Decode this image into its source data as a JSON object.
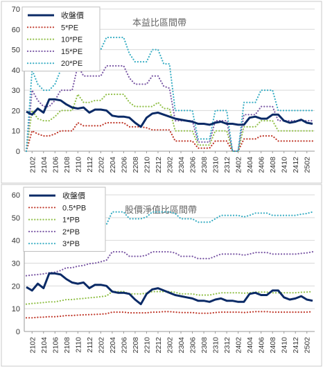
{
  "chart_data": [
    {
      "type": "line",
      "title": "本益比區間帶",
      "ylim": [
        0,
        70
      ],
      "yticks": [
        0,
        10,
        20,
        30,
        40,
        50,
        60,
        70
      ],
      "x": [
        "2101",
        "2102",
        "2103",
        "2104",
        "2105",
        "2106",
        "2107",
        "2108",
        "2109",
        "2110",
        "2111",
        "2112",
        "2201",
        "2202",
        "2203",
        "2204",
        "2205",
        "2206",
        "2207",
        "2208",
        "2209",
        "2210",
        "2211",
        "2212",
        "2301",
        "2302",
        "2303",
        "2304",
        "2305",
        "2306",
        "2307",
        "2308",
        "2309",
        "2310",
        "2311",
        "2312",
        "2401",
        "2402",
        "2403",
        "2404",
        "2405",
        "2406",
        "2407",
        "2408",
        "2409",
        "2410",
        "2411",
        "2412",
        "2501",
        "2502",
        "2503"
      ],
      "xticklabels": [
        "2102",
        "2104",
        "2106",
        "2108",
        "2110",
        "2112",
        "2202",
        "2204",
        "2206",
        "2208",
        "2210",
        "2212",
        "2302",
        "2304",
        "2306",
        "2308",
        "2310",
        "2312",
        "2402",
        "2404",
        "2406",
        "2408",
        "2410",
        "2412",
        "2502"
      ],
      "series": [
        {
          "name": "收盤價",
          "color": "#0a2a66",
          "style": "solid",
          "width": 3,
          "values": [
            19.5,
            18,
            21,
            19,
            25.5,
            25.5,
            25,
            23,
            21.5,
            21,
            21.5,
            19,
            20.5,
            20.5,
            20,
            17.5,
            17,
            17,
            16.5,
            14,
            12,
            16.5,
            18.5,
            19,
            18,
            17,
            16,
            15.5,
            15,
            14.5,
            13.5,
            13.5,
            13,
            14,
            14.5,
            13.5,
            13.5,
            13,
            13,
            16.5,
            17,
            16,
            16,
            18,
            18,
            15,
            14,
            14.5,
            15.5,
            14,
            13.5
          ]
        },
        {
          "name": "5*PE",
          "color": "#c0392b",
          "style": "dotted",
          "width": 2.2,
          "values": [
            0,
            10,
            8.5,
            7.5,
            7.5,
            8.5,
            10,
            10,
            10,
            14,
            12.5,
            12.5,
            12.5,
            12.5,
            14,
            14,
            14,
            14,
            12,
            12,
            12,
            11.5,
            10.5,
            10.5,
            10.5,
            10.5,
            5,
            5,
            5,
            5,
            1.5,
            1.5,
            1.5,
            5,
            5,
            5,
            0,
            0,
            6,
            6,
            6,
            7.5,
            7.5,
            7.5,
            5,
            5,
            5,
            5,
            5,
            5,
            5
          ]
        },
        {
          "name": "10*PE",
          "color": "#92c04a",
          "style": "dotted",
          "width": 2.2,
          "values": [
            0,
            20,
            16,
            15,
            15,
            17,
            20,
            20,
            20,
            28,
            24,
            24,
            25,
            25,
            28,
            28,
            28,
            28,
            24,
            22,
            22,
            22,
            22,
            24,
            21,
            21,
            10,
            10,
            10,
            10,
            3,
            3,
            3,
            10,
            10,
            10,
            0,
            0,
            12,
            12,
            12,
            15,
            15,
            15,
            10,
            10,
            10,
            10,
            10,
            10,
            10
          ]
        },
        {
          "name": "15*PE",
          "color": "#7c5aa6",
          "style": "dotted",
          "width": 2.2,
          "values": [
            0,
            30,
            25,
            22,
            22,
            25,
            30,
            30,
            30,
            42,
            37,
            37,
            37,
            37,
            42,
            42,
            42,
            42,
            36,
            33,
            33,
            33,
            37,
            37,
            32,
            31,
            15,
            15,
            15,
            15,
            4.5,
            4.5,
            4.5,
            15,
            15,
            15,
            0,
            0,
            18,
            18,
            18,
            22,
            22,
            22,
            15,
            15,
            15,
            15,
            15,
            15,
            15
          ]
        },
        {
          "name": "20*PE",
          "color": "#3aaec4",
          "style": "dotted",
          "width": 2.2,
          "values": [
            0,
            40,
            33,
            30,
            30,
            33,
            40,
            40,
            40,
            56,
            50,
            50,
            50,
            50,
            56,
            56,
            56,
            56,
            48,
            44,
            44,
            44,
            50,
            50,
            43,
            43,
            20,
            20,
            20,
            20,
            6,
            6,
            6,
            20,
            20,
            20,
            0,
            0,
            24,
            24,
            24,
            30,
            30,
            30,
            20,
            20,
            20,
            20,
            20,
            20,
            20
          ]
        }
      ]
    },
    {
      "type": "line",
      "title": "股價淨值比區間帶",
      "ylim": [
        0,
        60
      ],
      "yticks": [
        0,
        10,
        20,
        30,
        40,
        50,
        60
      ],
      "x": [
        "2101",
        "2102",
        "2103",
        "2104",
        "2105",
        "2106",
        "2107",
        "2108",
        "2109",
        "2110",
        "2111",
        "2112",
        "2201",
        "2202",
        "2203",
        "2204",
        "2205",
        "2206",
        "2207",
        "2208",
        "2209",
        "2210",
        "2211",
        "2212",
        "2301",
        "2302",
        "2303",
        "2304",
        "2305",
        "2306",
        "2307",
        "2308",
        "2309",
        "2310",
        "2311",
        "2312",
        "2401",
        "2402",
        "2403",
        "2404",
        "2405",
        "2406",
        "2407",
        "2408",
        "2409",
        "2410",
        "2411",
        "2412",
        "2501",
        "2502",
        "2503"
      ],
      "xticklabels": [
        "2102",
        "2104",
        "2106",
        "2108",
        "2110",
        "2112",
        "2202",
        "2204",
        "2206",
        "2208",
        "2210",
        "2212",
        "2302",
        "2304",
        "2306",
        "2308",
        "2310",
        "2312",
        "2402",
        "2404",
        "2406",
        "2408",
        "2410",
        "2412",
        "2502"
      ],
      "series": [
        {
          "name": "收盤價",
          "color": "#0a2a66",
          "style": "solid",
          "width": 3,
          "values": [
            19.5,
            18,
            21,
            19,
            25.5,
            25.5,
            25,
            23,
            21.5,
            21,
            21.5,
            19,
            20.5,
            20.5,
            20,
            17.5,
            17,
            17,
            16.5,
            14,
            12,
            16.5,
            18.5,
            19,
            18,
            17,
            16,
            15.5,
            15,
            14.5,
            13.5,
            13.5,
            13,
            14,
            14.5,
            13.5,
            13.5,
            13,
            13,
            16.5,
            17,
            16,
            16,
            18,
            18,
            15,
            14,
            14.5,
            15.5,
            14,
            13.5
          ]
        },
        {
          "name": "0.5*PB",
          "color": "#c0392b",
          "style": "dotted",
          "width": 2.2,
          "values": [
            6,
            6,
            6.2,
            6.3,
            6.5,
            6.5,
            6.7,
            7,
            7,
            7.2,
            7.3,
            7.4,
            7.5,
            7.6,
            7.8,
            8.5,
            8.5,
            8.5,
            8.2,
            8.2,
            8.2,
            8.2,
            8.5,
            8.5,
            8.7,
            8.7,
            8.5,
            8.3,
            8.3,
            8.3,
            8,
            8,
            8,
            8.3,
            8.5,
            8.5,
            8.5,
            8.5,
            8.3,
            8.5,
            8.7,
            8.7,
            8.7,
            8.5,
            8.5,
            8.5,
            8.5,
            8.5,
            8.5,
            8.5,
            8.7
          ]
        },
        {
          "name": "1*PB",
          "color": "#92c04a",
          "style": "dotted",
          "width": 2.2,
          "values": [
            12,
            12.3,
            12.5,
            12.7,
            13,
            13,
            13.5,
            14,
            14,
            14.3,
            14.5,
            14.8,
            15,
            15.3,
            15.6,
            17.5,
            17.5,
            17.5,
            16.5,
            16.5,
            16.5,
            16.8,
            17.5,
            17.5,
            17.5,
            17.5,
            17.2,
            16.5,
            16.5,
            16.5,
            16,
            16,
            16,
            16.5,
            17,
            17,
            17,
            17,
            16.8,
            17,
            17.3,
            17.3,
            17.3,
            17,
            17,
            17,
            17,
            17,
            17.2,
            17.3,
            17.5
          ]
        },
        {
          "name": "2*PB",
          "color": "#7c5aa6",
          "style": "dotted",
          "width": 2.2,
          "values": [
            24.5,
            24.8,
            25,
            25.3,
            25.8,
            26,
            26.8,
            28,
            28,
            28.7,
            29,
            29.8,
            30,
            30.6,
            31.3,
            35,
            35,
            35,
            33,
            33,
            33,
            33.5,
            35,
            35,
            35,
            35,
            34.5,
            33,
            33,
            33,
            32,
            32,
            32,
            33,
            34,
            34,
            34,
            34,
            33.5,
            34,
            34.7,
            34.7,
            34.7,
            34,
            34,
            34,
            34,
            34,
            34.3,
            34.5,
            35
          ]
        },
        {
          "name": "3*PB",
          "color": "#3aaec4",
          "style": "dotted",
          "width": 2.2,
          "values": [
            37,
            37.3,
            37.6,
            38,
            38.7,
            39,
            40.2,
            42,
            42,
            43,
            43.5,
            44.7,
            45,
            45.9,
            47,
            52.5,
            52.5,
            52.5,
            49.5,
            49.5,
            49.5,
            50.3,
            52.5,
            52.5,
            52.5,
            52.5,
            51.8,
            49.5,
            49.5,
            49.5,
            48,
            48,
            48,
            49.5,
            51,
            51,
            51,
            51,
            50.3,
            51,
            52,
            52,
            52,
            51,
            51,
            51,
            51,
            51,
            51.5,
            51.8,
            52.5
          ]
        }
      ]
    }
  ]
}
